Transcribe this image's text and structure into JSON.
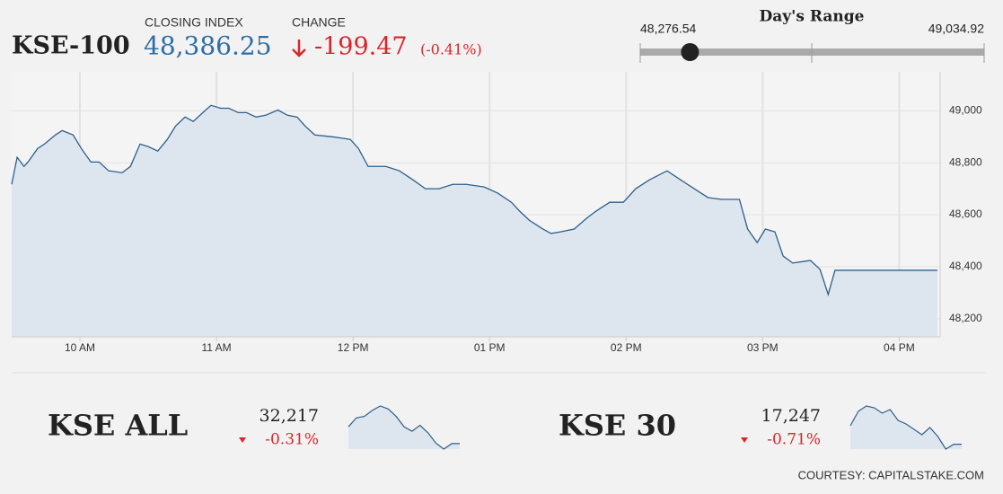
{
  "header": {
    "title": "KSE-100",
    "closing_title": "CLOSING INDEX",
    "closing": {
      "value": 48386.25,
      "label": "48,386.25"
    },
    "change_title": "CHANGE",
    "change": "-199.47",
    "change_pct": "(-0.41%)"
  },
  "range": {
    "title": "Day's Range",
    "low": {
      "value": 48276.54,
      "label": "48,276.54"
    },
    "high": {
      "value": 49034.92,
      "label": "49,034.92"
    }
  },
  "chart_data": [
    {
      "type": "line",
      "color": "#2d5f8a",
      "grid": true,
      "x": [
        9.5,
        9.54,
        9.59,
        9.62,
        9.69,
        9.74,
        9.82,
        9.87,
        9.95,
        10.01,
        10.08,
        10.14,
        10.21,
        10.31,
        10.37,
        10.44,
        10.5,
        10.57,
        10.64,
        10.7,
        10.77,
        10.83,
        10.9,
        10.96,
        11.03,
        11.09,
        11.16,
        11.22,
        11.29,
        11.36,
        11.45,
        11.52,
        11.59,
        11.65,
        11.72,
        11.85,
        11.98,
        12.04,
        12.11,
        12.24,
        12.34,
        12.44,
        12.53,
        12.63,
        12.73,
        12.83,
        12.96,
        13.06,
        13.16,
        13.22,
        13.29,
        13.39,
        13.45,
        13.52,
        13.62,
        13.71,
        13.78,
        13.88,
        13.98,
        14.07,
        14.17,
        14.3,
        14.4,
        14.5,
        14.6,
        14.7,
        14.83,
        14.89,
        14.96,
        15.02,
        15.09,
        15.15,
        15.22,
        15.35,
        15.42,
        15.48,
        15.53,
        16.28
      ],
      "values": [
        48717,
        48821,
        48786,
        48803,
        48855,
        48872,
        48907,
        48924,
        48907,
        48855,
        48803,
        48803,
        48769,
        48762,
        48786,
        48872,
        48862,
        48845,
        48890,
        48941,
        48976,
        48959,
        48993,
        49021,
        49010,
        49010,
        48993,
        48993,
        48976,
        48983,
        49003,
        48983,
        48976,
        48941,
        48907,
        48900,
        48890,
        48855,
        48786,
        48786,
        48769,
        48734,
        48700,
        48700,
        48717,
        48717,
        48707,
        48683,
        48648,
        48614,
        48579,
        48545,
        48528,
        48534,
        48545,
        48586,
        48614,
        48648,
        48648,
        48700,
        48734,
        48769,
        48734,
        48700,
        48666,
        48659,
        48659,
        48545,
        48493,
        48545,
        48534,
        48441,
        48414,
        48424,
        48390,
        48293,
        48386,
        48386
      ],
      "xlim": [
        9.5,
        16.3
      ],
      "xticks": [
        {
          "value": 10,
          "label": "10 AM"
        },
        {
          "value": 11,
          "label": "11 AM"
        },
        {
          "value": 12,
          "label": "12 PM"
        },
        {
          "value": 13,
          "label": "01 PM"
        },
        {
          "value": 14,
          "label": "02 PM"
        },
        {
          "value": 15,
          "label": "03 PM"
        },
        {
          "value": 16,
          "label": "04 PM"
        }
      ],
      "ylim": [
        48130,
        49150
      ],
      "yticks": [
        {
          "value": 48200,
          "label": "48,200"
        },
        {
          "value": 48400,
          "label": "48,400"
        },
        {
          "value": 48600,
          "label": "48,600"
        },
        {
          "value": 48800,
          "label": "48,800"
        },
        {
          "value": 49000,
          "label": "49,000"
        }
      ]
    },
    {
      "type": "sparkline",
      "title": "KSE ALL",
      "last": "32,217",
      "change": "-0.31%",
      "color": "#2d5f8a",
      "values": [
        32330,
        32390,
        32400,
        32440,
        32470,
        32450,
        32400,
        32330,
        32300,
        32340,
        32290,
        32220,
        32180,
        32217,
        32217
      ]
    },
    {
      "type": "sparkline",
      "title": "KSE 30",
      "last": "17,247",
      "change": "-0.71%",
      "color": "#2d5f8a",
      "values": [
        17350,
        17430,
        17460,
        17450,
        17420,
        17440,
        17380,
        17360,
        17330,
        17300,
        17340,
        17290,
        17220,
        17247,
        17247
      ]
    }
  ],
  "footer": "COURTESY: CAPITALSTAKE.COM"
}
